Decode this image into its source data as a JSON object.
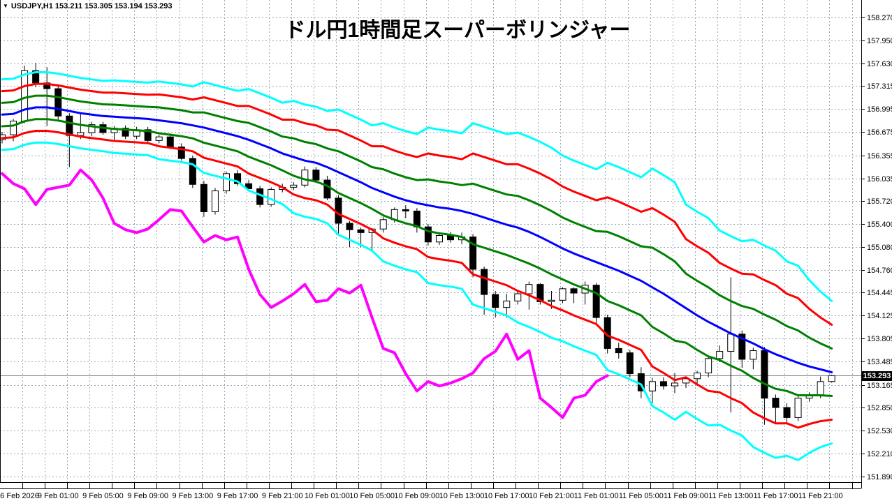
{
  "window": {
    "dropdown_icon": "▼",
    "symbol": "USDJPY,H1",
    "bar_ohlc_text": "153.211 153.305 153.194 153.293"
  },
  "title": "ドル円1時間足スーパーボリンジャー",
  "current_price": {
    "value": "153.293"
  },
  "price_axis": {
    "labels": [
      "158.270",
      "157.950",
      "157.630",
      "157.315",
      "156.995",
      "156.675",
      "156.355",
      "156.035",
      "155.720",
      "155.400",
      "155.080",
      "154.760",
      "154.445",
      "154.125",
      "153.805",
      "153.485",
      "153.165",
      "152.850",
      "152.530",
      "152.210",
      "151.890"
    ]
  },
  "time_axis": {
    "labels": [
      "6 Feb 2026",
      "9 Feb 01:00",
      "9 Feb 05:00",
      "9 Feb 09:00",
      "9 Feb 13:00",
      "9 Feb 17:00",
      "9 Feb 21:00",
      "10 Feb 01:00",
      "10 Feb 05:00",
      "10 Feb 09:00",
      "10 Feb 13:00",
      "10 Feb 17:00",
      "10 Feb 21:00",
      "11 Feb 01:00",
      "11 Feb 05:00",
      "11 Feb 09:00",
      "11 Feb 13:00",
      "11 Feb 17:00",
      "11 Feb 21:00"
    ],
    "label_bar_indices": [
      1,
      5,
      9,
      13,
      17,
      21,
      25,
      29,
      33,
      37,
      41,
      45,
      49,
      53,
      57,
      61,
      65,
      69,
      73
    ]
  },
  "colors": {
    "background": "#ffffff",
    "grid": "#95a6b8",
    "axis_line": "#000000",
    "axis_text": "#000000",
    "bull_candle": "#ffffff",
    "bear_candle": "#000000",
    "candle_outline": "#000000",
    "sma_center": "#0000ff",
    "band_1sigma": "#008000",
    "band_2sigma": "#ff0000",
    "band_3sigma": "#00ffff",
    "lagging_span": "#ff00ff",
    "price_line": "#808080",
    "badge_bg": "#000000",
    "badge_text": "#ffffff"
  },
  "chart_data": {
    "type": "candlestick",
    "symbol": "USDJPY",
    "timeframe": "H1",
    "title": "ドル円1時間足スーパーボリンジャー",
    "indicator": "Super Bollinger (21SMA ± 1/2/3 sigma + lagging span)",
    "price_range": {
      "top": 158.27,
      "bottom": 151.89
    },
    "current_price": 153.293,
    "current_bar": {
      "open": 153.211,
      "high": 153.305,
      "low": 153.194,
      "close": 153.293
    },
    "bands_sigma_multiples": [
      1,
      2,
      3
    ],
    "lagging_span_shift": 20,
    "ohlc": [
      [
        156.57,
        156.68,
        156.52,
        156.64
      ],
      [
        156.64,
        156.86,
        156.55,
        156.83
      ],
      [
        156.83,
        157.6,
        156.8,
        157.53
      ],
      [
        157.53,
        157.64,
        157.3,
        157.36
      ],
      [
        157.36,
        157.58,
        156.76,
        157.28
      ],
      [
        157.28,
        157.32,
        156.85,
        156.9
      ],
      [
        156.9,
        156.94,
        156.19,
        156.63
      ],
      [
        156.63,
        156.95,
        156.58,
        156.67
      ],
      [
        156.67,
        156.82,
        156.62,
        156.78
      ],
      [
        156.78,
        156.82,
        156.64,
        156.67
      ],
      [
        156.67,
        156.76,
        156.54,
        156.73
      ],
      [
        156.73,
        156.77,
        156.58,
        156.62
      ],
      [
        156.62,
        156.75,
        156.58,
        156.71
      ],
      [
        156.71,
        156.75,
        156.52,
        156.56
      ],
      [
        156.56,
        156.64,
        156.52,
        156.61
      ],
      [
        156.61,
        156.66,
        156.44,
        156.47
      ],
      [
        156.47,
        156.52,
        156.28,
        156.31
      ],
      [
        156.31,
        156.35,
        155.9,
        155.95
      ],
      [
        155.95,
        156.0,
        155.5,
        155.57
      ],
      [
        155.57,
        155.9,
        155.53,
        155.86
      ],
      [
        155.86,
        156.13,
        155.82,
        156.1
      ],
      [
        156.1,
        156.15,
        155.93,
        155.96
      ],
      [
        155.96,
        156.01,
        155.85,
        155.89
      ],
      [
        155.89,
        155.93,
        155.63,
        155.67
      ],
      [
        155.67,
        155.91,
        155.64,
        155.88
      ],
      [
        155.88,
        155.96,
        155.84,
        155.91
      ],
      [
        155.91,
        155.98,
        155.87,
        155.94
      ],
      [
        155.94,
        156.2,
        155.91,
        156.15
      ],
      [
        156.15,
        156.19,
        155.97,
        156.01
      ],
      [
        156.01,
        156.07,
        155.73,
        155.76
      ],
      [
        155.76,
        155.8,
        155.25,
        155.41
      ],
      [
        155.41,
        155.44,
        155.08,
        155.32
      ],
      [
        155.32,
        155.35,
        155.08,
        155.28
      ],
      [
        155.28,
        155.34,
        155.02,
        155.33
      ],
      [
        155.33,
        155.5,
        155.28,
        155.46
      ],
      [
        155.46,
        155.63,
        155.42,
        155.6
      ],
      [
        155.6,
        155.66,
        155.48,
        155.58
      ],
      [
        155.58,
        155.62,
        155.28,
        155.36
      ],
      [
        155.36,
        155.4,
        155.1,
        155.15
      ],
      [
        155.15,
        155.27,
        155.11,
        155.24
      ],
      [
        155.24,
        155.29,
        155.14,
        155.18
      ],
      [
        155.18,
        155.28,
        155.12,
        155.22
      ],
      [
        155.22,
        155.26,
        154.66,
        154.77
      ],
      [
        154.77,
        154.81,
        154.14,
        154.42
      ],
      [
        154.42,
        154.47,
        154.1,
        154.24
      ],
      [
        154.24,
        154.43,
        154.1,
        154.33
      ],
      [
        154.33,
        154.47,
        154.28,
        154.43
      ],
      [
        154.43,
        154.6,
        154.21,
        154.56
      ],
      [
        154.56,
        154.58,
        154.28,
        154.32
      ],
      [
        154.32,
        154.47,
        154.22,
        154.34
      ],
      [
        154.34,
        154.52,
        154.3,
        154.5
      ],
      [
        154.5,
        154.52,
        154.3,
        154.44
      ],
      [
        154.44,
        154.6,
        154.28,
        154.55
      ],
      [
        154.55,
        154.58,
        154.02,
        154.1
      ],
      [
        154.1,
        154.14,
        153.6,
        153.67
      ],
      [
        153.67,
        153.75,
        153.53,
        153.61
      ],
      [
        153.61,
        153.65,
        153.27,
        153.32
      ],
      [
        153.32,
        153.41,
        152.98,
        153.08
      ],
      [
        153.08,
        153.26,
        152.91,
        153.21
      ],
      [
        153.21,
        153.27,
        153.1,
        153.15
      ],
      [
        153.15,
        153.33,
        153.05,
        153.19
      ],
      [
        153.19,
        153.28,
        153.12,
        153.25
      ],
      [
        153.25,
        153.36,
        153.18,
        153.33
      ],
      [
        153.33,
        153.57,
        153.27,
        153.53
      ],
      [
        153.53,
        153.71,
        153.48,
        153.63
      ],
      [
        153.63,
        154.66,
        152.78,
        153.87
      ],
      [
        153.87,
        153.92,
        153.4,
        153.52
      ],
      [
        153.52,
        153.68,
        153.38,
        153.64
      ],
      [
        153.64,
        153.69,
        152.61,
        152.98
      ],
      [
        152.98,
        153.03,
        152.62,
        152.85
      ],
      [
        152.85,
        152.91,
        152.64,
        152.71
      ],
      [
        152.71,
        153.01,
        152.66,
        152.98
      ],
      [
        152.98,
        153.06,
        152.93,
        153.02
      ],
      [
        153.02,
        153.28,
        152.98,
        153.21
      ],
      [
        153.211,
        153.305,
        153.194,
        153.293
      ]
    ],
    "sma21": [
      156.92,
      156.93,
      156.99,
      157.02,
      157.02,
      157.0,
      156.97,
      156.94,
      156.92,
      156.9,
      156.89,
      156.88,
      156.87,
      156.86,
      156.84,
      156.82,
      156.8,
      156.77,
      156.74,
      156.7,
      156.66,
      156.62,
      156.57,
      156.51,
      156.45,
      156.38,
      156.33,
      156.28,
      156.25,
      156.19,
      156.12,
      156.05,
      155.98,
      155.9,
      155.84,
      155.78,
      155.73,
      155.69,
      155.66,
      155.63,
      155.61,
      155.58,
      155.54,
      155.49,
      155.44,
      155.39,
      155.35,
      155.29,
      155.22,
      155.14,
      155.06,
      154.99,
      154.93,
      154.87,
      154.81,
      154.75,
      154.68,
      154.61,
      154.52,
      154.43,
      154.33,
      154.23,
      154.13,
      154.04,
      153.96,
      153.88,
      153.81,
      153.74,
      153.66,
      153.59,
      153.53,
      153.47,
      153.42,
      153.38,
      153.34
    ],
    "sigma": [
      0.163,
      0.163,
      0.163,
      0.163,
      0.163,
      0.163,
      0.163,
      0.163,
      0.163,
      0.163,
      0.168,
      0.168,
      0.168,
      0.168,
      0.18,
      0.18,
      0.18,
      0.18,
      0.21,
      0.21,
      0.21,
      0.21,
      0.235,
      0.235,
      0.235,
      0.235,
      0.26,
      0.26,
      0.26,
      0.26,
      0.29,
      0.29,
      0.29,
      0.29,
      0.32,
      0.32,
      0.32,
      0.32,
      0.36,
      0.36,
      0.36,
      0.36,
      0.42,
      0.42,
      0.42,
      0.42,
      0.44,
      0.44,
      0.44,
      0.44,
      0.43,
      0.43,
      0.43,
      0.43,
      0.48,
      0.48,
      0.48,
      0.48,
      0.55,
      0.55,
      0.55,
      0.48,
      0.48,
      0.48,
      0.45,
      0.45,
      0.45,
      0.48,
      0.48,
      0.48,
      0.45,
      0.45,
      0.4,
      0.36,
      0.33
    ]
  }
}
